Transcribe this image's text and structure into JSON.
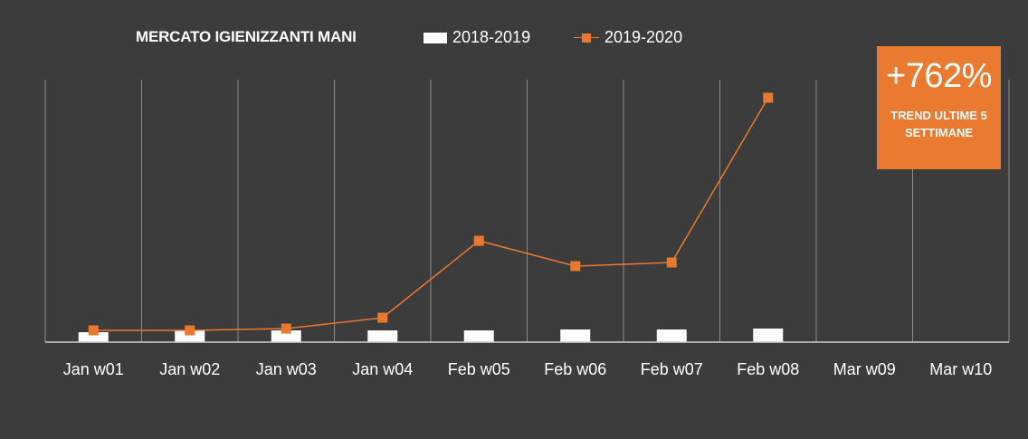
{
  "chart_data": {
    "type": "bar+line",
    "title": "MERCATO IGIENIZZANTI MANI",
    "categories": [
      "Jan w01",
      "Jan w02",
      "Jan w03",
      "Jan w04",
      "Feb w05",
      "Feb w06",
      "Feb w07",
      "Feb w08",
      "Mar w09",
      "Mar w10"
    ],
    "series": [
      {
        "name": "2018-2019",
        "kind": "bar",
        "color": "#ffffff",
        "values": [
          11,
          13,
          13,
          13,
          13,
          14,
          14,
          15,
          null,
          null
        ]
      },
      {
        "name": "2019-2020",
        "kind": "line",
        "color": "#e8792f",
        "values": [
          13,
          13,
          15,
          27,
          112,
          84,
          88,
          270,
          null,
          null
        ]
      }
    ],
    "ylim": [
      0,
      290
    ],
    "grid": "vertical",
    "legend_position": "top"
  },
  "callout": {
    "value": "+762%",
    "label_line1": "TREND ULTIME 5",
    "label_line2": "SETTIMANE"
  }
}
